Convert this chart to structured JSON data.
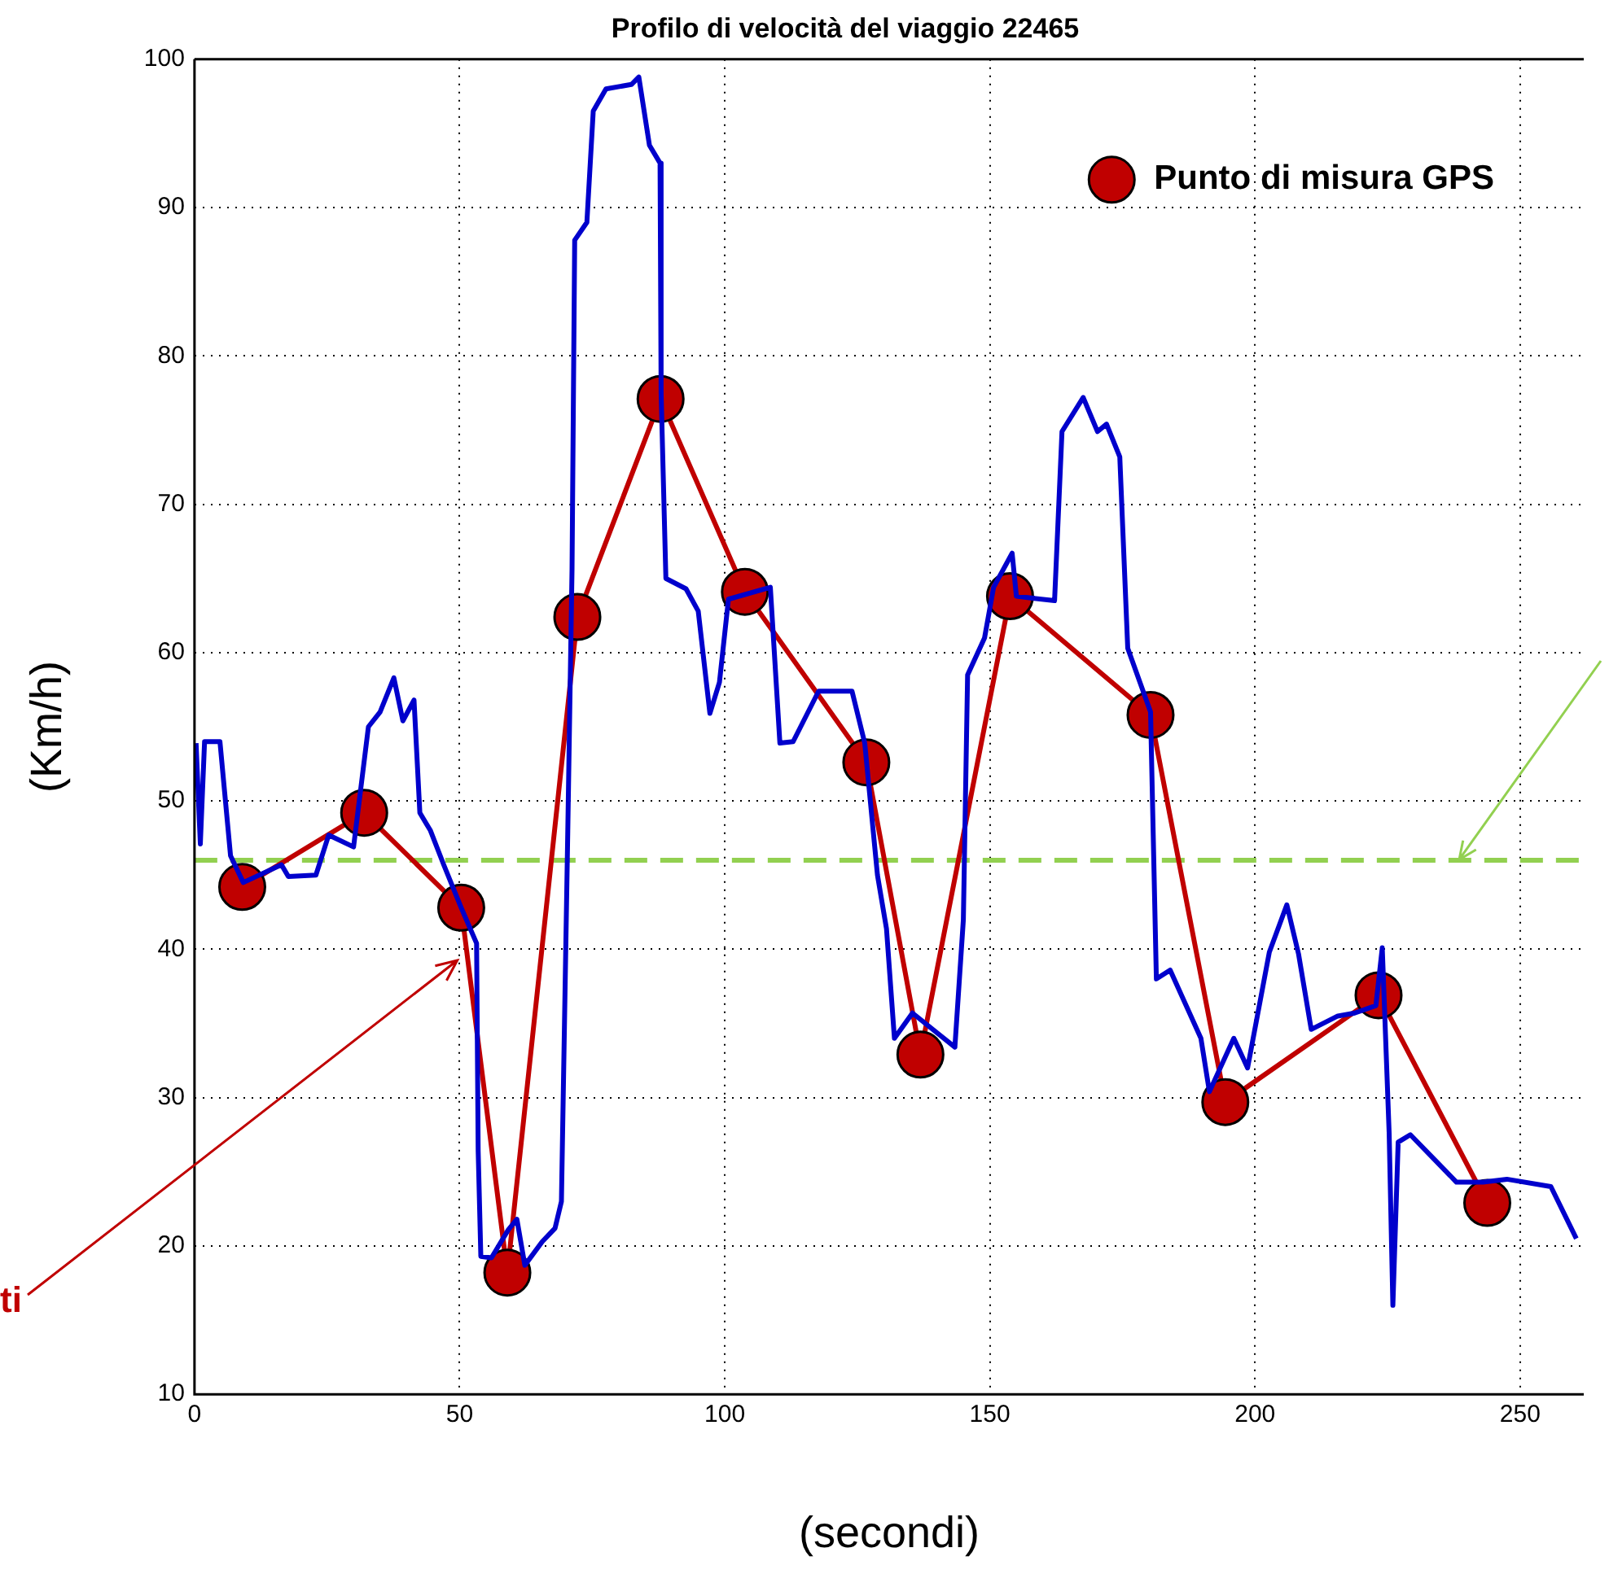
{
  "chart_data": {
    "type": "line",
    "title": "Profilo di velocità del viaggio 22465",
    "xlabel": "(secondi)",
    "ylabel": "(Km/h)",
    "xlim": [
      0,
      262
    ],
    "ylim": [
      10,
      100
    ],
    "xticks": [
      0,
      50,
      100,
      150,
      200,
      250
    ],
    "yticks": [
      10,
      20,
      30,
      40,
      50,
      60,
      70,
      80,
      90,
      100
    ],
    "grid": true,
    "legend": "top right",
    "series": [
      {
        "color": "#0000cc",
        "marker": "none",
        "x": [
          0.3,
          1.1,
          1.9,
          4.8,
          6.8,
          9.2,
          16.4,
          17.7,
          22.9,
          25.3,
          30,
          32.8,
          35,
          37.6,
          39.3,
          41.4,
          42.5,
          44.5,
          47,
          50.3,
          53.2,
          53.5,
          54,
          56,
          59.2,
          60.8,
          62.3,
          65.6,
          68,
          69.2,
          70.4,
          71.2,
          71.7,
          74,
          75.2,
          77.6,
          82.4,
          83.8,
          85.8,
          87.8,
          88,
          88.9,
          92.7,
          95,
          97.2,
          99,
          100.7,
          108.6,
          110.4,
          112.9,
          117.7,
          124,
          126.4,
          128.8,
          130.5,
          132,
          135.4,
          143.4,
          145,
          145.8,
          149,
          150.7,
          154.2,
          155,
          162.2,
          163.6,
          167.6,
          170.3,
          172,
          174.5,
          176,
          180.3,
          181.4,
          184,
          189.8,
          191.4,
          196,
          198.6,
          202.7,
          206,
          208.2,
          210.6,
          215.6,
          218.8,
          222.8,
          224,
          225.3,
          226,
          227,
          229.3,
          238,
          243,
          247.5,
          255.8,
          260.6
        ],
        "values": [
          53.9,
          47.1,
          54,
          54,
          46.3,
          44.5,
          45.7,
          44.9,
          45,
          47.7,
          46.9,
          55,
          56,
          58.3,
          55.4,
          56.8,
          49.2,
          48,
          45.7,
          42.8,
          40.4,
          26.4,
          19.3,
          19.2,
          21.1,
          21.8,
          18.7,
          20.3,
          21.2,
          23,
          48,
          65.6,
          87.8,
          89,
          96.5,
          98,
          98.3,
          98.8,
          94.2,
          93,
          77.5,
          65,
          64.3,
          62.8,
          55.9,
          58,
          63.6,
          64.4,
          53.9,
          54,
          57.4,
          57.4,
          53.9,
          45,
          41.4,
          34,
          35.7,
          33.4,
          42,
          58.5,
          61,
          64.4,
          66.7,
          63.8,
          63.5,
          74.9,
          77.2,
          74.9,
          75.4,
          73.2,
          60.3,
          56,
          38,
          38.6,
          34,
          30.4,
          34,
          32,
          39.8,
          43,
          39.7,
          34.6,
          35.5,
          35.7,
          36.2,
          40.1,
          27.6,
          16,
          27,
          27.5,
          24.3,
          24.3,
          24.5,
          24,
          20.5
        ]
      },
      {
        "name": "Punto di misura GPS",
        "color": "#c00000",
        "marker": "circle",
        "x": [
          9,
          32,
          50.3,
          59,
          72.2,
          87.9,
          103.8,
          126.7,
          136.9,
          153.8,
          180.3,
          194.4,
          223.3,
          243.8
        ],
        "values": [
          44.2,
          49.2,
          42.8,
          18.2,
          62.4,
          77.1,
          64.1,
          52.6,
          32.9,
          63.8,
          55.8,
          29.7,
          36.9,
          22.9
        ]
      }
    ],
    "ref_lines": [
      {
        "axis": "y",
        "value": 46,
        "color": "#92d050",
        "line_style": "dashed"
      }
    ],
    "annotations": [
      {
        "text": "ti",
        "x": 49.7,
        "y": 39.2
      }
    ]
  }
}
